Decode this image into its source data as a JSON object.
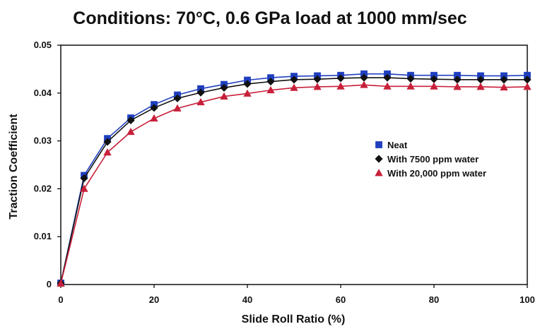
{
  "chart_data": {
    "type": "line",
    "title": "Conditions: 70°C, 0.6 GPa load at 1000 mm/sec",
    "xlabel": "Slide Roll Ratio (%)",
    "ylabel": "Traction Coefficient",
    "xlim": [
      0,
      100
    ],
    "ylim": [
      0,
      0.05
    ],
    "x_ticks": [
      "0",
      "20",
      "40",
      "60",
      "80",
      "100"
    ],
    "y_ticks": [
      "0",
      "0.01",
      "0.02",
      "0.03",
      "0.04",
      "0.05"
    ],
    "legend_position": "right",
    "x": [
      0,
      5,
      10,
      15,
      20,
      25,
      30,
      35,
      40,
      45,
      50,
      55,
      60,
      65,
      70,
      75,
      80,
      85,
      90,
      95,
      100
    ],
    "series": [
      {
        "name": "Neat",
        "color": "#1f3fbf",
        "marker": "square",
        "values": [
          0.0003,
          0.0228,
          0.0305,
          0.0348,
          0.0376,
          0.0396,
          0.0409,
          0.0418,
          0.0427,
          0.0432,
          0.0435,
          0.0436,
          0.0437,
          0.044,
          0.044,
          0.0437,
          0.0437,
          0.0437,
          0.0436,
          0.0436,
          0.0437
        ]
      },
      {
        "name": "With 7500 ppm water",
        "color": "#111111",
        "marker": "diamond",
        "values": [
          0.0003,
          0.0222,
          0.0298,
          0.0343,
          0.0369,
          0.0389,
          0.0401,
          0.0411,
          0.0419,
          0.0424,
          0.0428,
          0.0429,
          0.0431,
          0.0432,
          0.0432,
          0.043,
          0.0429,
          0.0428,
          0.0428,
          0.0428,
          0.0428
        ]
      },
      {
        "name": "With 20,000 ppm water",
        "color": "#c8203a",
        "marker": "triangle",
        "values": [
          0.0002,
          0.02,
          0.0276,
          0.0319,
          0.0347,
          0.0368,
          0.0381,
          0.0393,
          0.0399,
          0.0406,
          0.0411,
          0.0413,
          0.0414,
          0.0417,
          0.0414,
          0.0414,
          0.0414,
          0.0413,
          0.0413,
          0.0412,
          0.0413
        ]
      }
    ]
  }
}
